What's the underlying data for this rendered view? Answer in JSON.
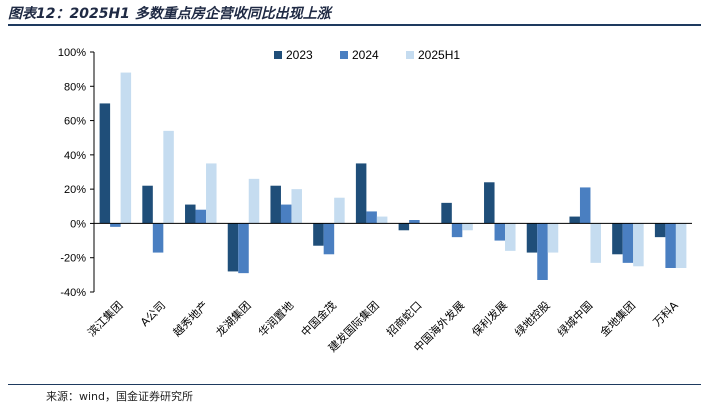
{
  "figure": {
    "title": "图表12：2025H1 多数重点房企营收同比出现上涨",
    "source": "来源：wind，国金证券研究所"
  },
  "colors": {
    "s2023": "#1f4e79",
    "s2024": "#4a7fc1",
    "s2025h1": "#c5dcf0"
  },
  "chart_data": {
    "type": "bar",
    "categories": [
      "滨江集团",
      "A公司",
      "越秀地产",
      "龙湖集团",
      "华润置地",
      "中国金茂",
      "建发国际集团",
      "招商蛇口",
      "中国海外发展",
      "保利发展",
      "绿地控股",
      "绿城中国",
      "金地集团",
      "万科A"
    ],
    "series": [
      {
        "name": "2023",
        "values": [
          70,
          22,
          11,
          -28,
          22,
          -13,
          35,
          -4,
          12,
          24,
          -17,
          4,
          -18,
          -8
        ]
      },
      {
        "name": "2024",
        "values": [
          -2,
          -17,
          8,
          -29,
          11,
          -18,
          7,
          2,
          -8,
          -10,
          -33,
          21,
          -23,
          -26
        ]
      },
      {
        "name": "2025H1",
        "values": [
          88,
          54,
          35,
          26,
          20,
          15,
          4,
          0,
          -4,
          -16,
          -17,
          -23,
          -25,
          -26
        ]
      }
    ],
    "ylim": [
      -40,
      100
    ],
    "yticks": [
      -40,
      -20,
      0,
      20,
      40,
      60,
      80,
      100
    ],
    "ytick_labels": [
      "-40%",
      "-20%",
      "0%",
      "20%",
      "40%",
      "60%",
      "80%",
      "100%"
    ],
    "legend": "top",
    "grid": false
  }
}
